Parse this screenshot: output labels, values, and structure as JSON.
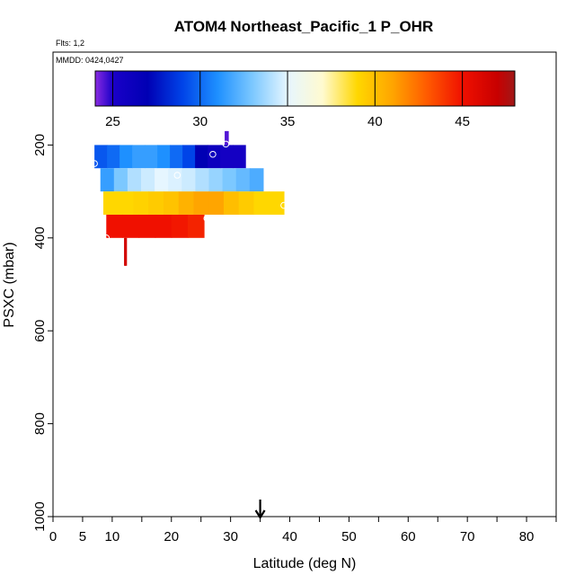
{
  "chart_data": {
    "type": "heatmap",
    "title": "ATOM4 Northeast_Pacific_1 P_OHR",
    "flights_note": "Flts: 1,2",
    "dates_note": "MMDD: 0424,0427",
    "xlabel": "Latitude (deg N)",
    "ylabel": "PSXC (mbar)",
    "xlim": [
      0,
      85
    ],
    "ylim": [
      1000,
      0
    ],
    "x_ticks": [
      0,
      5,
      10,
      20,
      30,
      40,
      50,
      60,
      70,
      80
    ],
    "x_minor_ticks": [
      0,
      5,
      10,
      15,
      20,
      25,
      30,
      35,
      40,
      45,
      50,
      55,
      60,
      65,
      70,
      75,
      80,
      85
    ],
    "y_ticks": [
      200,
      400,
      600,
      800,
      1000
    ],
    "colorbar": {
      "range": [
        24,
        48
      ],
      "ticks": [
        25,
        30,
        35,
        40,
        45
      ],
      "stops": [
        {
          "value": 24,
          "color": "#8a2be2"
        },
        {
          "value": 25,
          "color": "#1a00c8"
        },
        {
          "value": 27,
          "color": "#0000b4"
        },
        {
          "value": 29,
          "color": "#0044e8"
        },
        {
          "value": 31,
          "color": "#1e90ff"
        },
        {
          "value": 33,
          "color": "#7cc8ff"
        },
        {
          "value": 35,
          "color": "#e6f6ff"
        },
        {
          "value": 37,
          "color": "#fffad0"
        },
        {
          "value": 39,
          "color": "#ffd700"
        },
        {
          "value": 41,
          "color": "#ffa500"
        },
        {
          "value": 43,
          "color": "#ff5a00"
        },
        {
          "value": 45,
          "color": "#f01000"
        },
        {
          "value": 47,
          "color": "#c80000"
        },
        {
          "value": 48,
          "color": "#a01818"
        }
      ]
    },
    "bands": [
      {
        "p_top": 170,
        "p_bottom": 200,
        "lat_min": 29,
        "lat_max": 29.6,
        "values": [
          24.5,
          24.5
        ]
      },
      {
        "p_top": 200,
        "p_bottom": 250,
        "lat_min": 7,
        "lat_max": 32.5,
        "values": [
          29.5,
          30,
          31,
          31.5,
          31.5,
          31,
          30,
          29,
          27,
          26,
          25.5,
          25.5
        ]
      },
      {
        "p_top": 250,
        "p_bottom": 300,
        "lat_min": 8,
        "lat_max": 35.5,
        "values": [
          31.5,
          33,
          34,
          34.5,
          35,
          34.8,
          34.5,
          34,
          33.5,
          33,
          32.5,
          32
        ]
      },
      {
        "p_top": 300,
        "p_bottom": 350,
        "lat_min": 8.5,
        "lat_max": 39,
        "values": [
          39,
          39,
          39.2,
          39.5,
          39.8,
          40.5,
          41,
          41,
          40,
          39.5,
          39,
          39
        ]
      },
      {
        "p_top": 350,
        "p_bottom": 400,
        "lat_min": 9,
        "lat_max": 25.5,
        "values": [
          45,
          45,
          45,
          45,
          44.8,
          44.5
        ]
      },
      {
        "p_top": 400,
        "p_bottom": 460,
        "lat_min": 12,
        "lat_max": 12.4,
        "values": [
          46.5,
          46.5
        ]
      }
    ],
    "points": [
      {
        "lat": 7,
        "p": 240
      },
      {
        "lat": 21,
        "p": 265
      },
      {
        "lat": 27,
        "p": 220
      },
      {
        "lat": 29.2,
        "p": 198
      },
      {
        "lat": 26,
        "p": 358
      },
      {
        "lat": 39,
        "p": 330
      },
      {
        "lat": 9,
        "p": 400
      }
    ],
    "arrow_latitude": 35
  }
}
